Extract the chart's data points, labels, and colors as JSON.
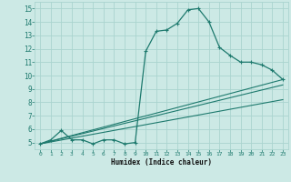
{
  "xlabel": "Humidex (Indice chaleur)",
  "xlim": [
    -0.5,
    23.5
  ],
  "ylim": [
    4.5,
    15.5
  ],
  "x_ticks": [
    0,
    1,
    2,
    3,
    4,
    5,
    6,
    7,
    8,
    9,
    10,
    11,
    12,
    13,
    14,
    15,
    16,
    17,
    18,
    19,
    20,
    21,
    22,
    23
  ],
  "y_ticks": [
    5,
    6,
    7,
    8,
    9,
    10,
    11,
    12,
    13,
    14,
    15
  ],
  "bg_color": "#cce9e5",
  "grid_color": "#aad4cf",
  "line_color": "#1e7a6e",
  "series1_x": [
    0,
    1,
    2,
    3,
    4,
    5,
    6,
    7,
    8,
    9,
    10,
    11,
    12,
    13,
    14,
    15,
    16,
    17,
    18,
    19,
    20,
    21,
    22,
    23
  ],
  "series1_y": [
    4.9,
    5.2,
    5.9,
    5.2,
    5.2,
    4.9,
    5.2,
    5.2,
    4.9,
    5.0,
    11.8,
    13.3,
    13.4,
    13.9,
    14.9,
    15.0,
    14.0,
    12.1,
    11.5,
    11.0,
    11.0,
    10.8,
    10.4,
    9.7
  ],
  "line2_x": [
    0,
    23
  ],
  "line2_y": [
    4.9,
    9.7
  ],
  "line3_x": [
    0,
    23
  ],
  "line3_y": [
    4.9,
    9.3
  ],
  "line4_x": [
    0,
    23
  ],
  "line4_y": [
    4.9,
    8.2
  ]
}
